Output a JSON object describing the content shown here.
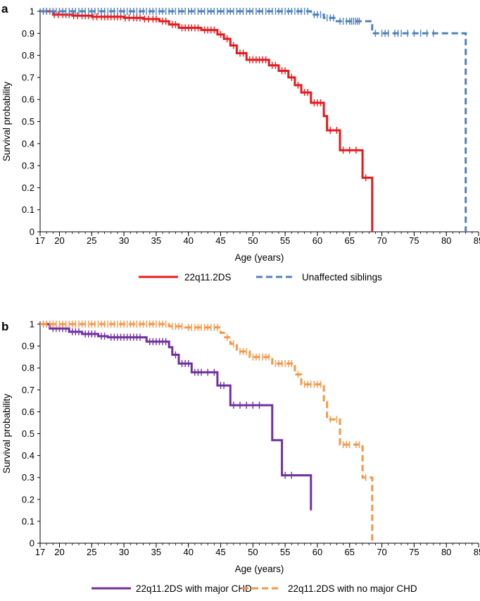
{
  "chart_data": [
    {
      "panel": "a",
      "type": "line",
      "subtype": "kaplan-meier",
      "xlabel": "Age (years)",
      "ylabel": "Survival probability",
      "xlim": [
        17,
        85
      ],
      "ylim": [
        0,
        1
      ],
      "x_ticks": [
        17,
        20,
        25,
        30,
        35,
        40,
        45,
        50,
        55,
        60,
        65,
        70,
        75,
        80,
        85
      ],
      "y_ticks": [
        0,
        0.1,
        0.2,
        0.3,
        0.4,
        0.5,
        0.6,
        0.7,
        0.8,
        0.9,
        1
      ],
      "y_tick_labels": [
        "0",
        "0.1",
        "0.2",
        "0.3",
        "0.4",
        "0.5",
        "0.6",
        "0.7",
        "0.8",
        "0.9",
        "1"
      ],
      "series": [
        {
          "name": "22q11.2DS",
          "color": "#e8191c",
          "dash": "solid",
          "steps": [
            [
              17,
              1.0
            ],
            [
              19,
              0.985
            ],
            [
              22,
              0.98
            ],
            [
              25,
              0.975
            ],
            [
              30,
              0.97
            ],
            [
              33,
              0.965
            ],
            [
              35.5,
              0.955
            ],
            [
              37,
              0.94
            ],
            [
              38.5,
              0.925
            ],
            [
              42,
              0.915
            ],
            [
              44.5,
              0.895
            ],
            [
              45.5,
              0.875
            ],
            [
              46.5,
              0.845
            ],
            [
              47.5,
              0.81
            ],
            [
              49,
              0.78
            ],
            [
              52.5,
              0.755
            ],
            [
              54,
              0.73
            ],
            [
              55.5,
              0.7
            ],
            [
              56.5,
              0.665
            ],
            [
              57.5,
              0.632
            ],
            [
              59,
              0.585
            ],
            [
              61,
              0.525
            ],
            [
              61.5,
              0.46
            ],
            [
              63.5,
              0.37
            ],
            [
              67,
              0.245
            ],
            [
              68.5,
              0.0
            ]
          ],
          "end": 68.5,
          "censor": [
            17.5,
            18,
            18.5,
            19.2,
            19.8,
            20.5,
            21,
            21.5,
            22.2,
            22.8,
            23.5,
            24,
            24.5,
            25.2,
            25.8,
            26.5,
            27,
            27.5,
            28,
            28.5,
            29,
            29.5,
            30.2,
            30.8,
            31.5,
            32,
            32.5,
            33.2,
            33.8,
            34.5,
            35,
            36,
            36.5,
            37.5,
            38,
            39,
            39.5,
            40,
            40.5,
            41,
            41.5,
            42.5,
            43,
            43.5,
            44,
            45,
            46,
            47,
            48,
            48.5,
            49.5,
            50,
            50.5,
            51,
            51.5,
            52,
            53,
            53.5,
            54.5,
            55,
            56,
            57,
            58,
            58.5,
            59.5,
            60,
            60.5,
            62,
            63,
            64,
            65,
            66,
            67.5
          ]
        },
        {
          "name": "Unaffected siblings",
          "color": "#4f81bd",
          "dash": "dashed",
          "steps": [
            [
              17,
              1.0
            ],
            [
              59,
              0.985
            ],
            [
              61,
              0.97
            ],
            [
              63,
              0.955
            ],
            [
              68.5,
              0.9
            ],
            [
              83,
              0.0
            ]
          ],
          "end": 83,
          "censor": [
            17.5,
            18,
            18.5,
            19,
            19.5,
            20,
            20.5,
            21,
            21.5,
            22,
            22.5,
            23,
            23.5,
            24,
            24.5,
            25,
            25.5,
            26,
            26.5,
            27,
            27.5,
            28,
            28.5,
            29,
            29.5,
            30,
            30.5,
            31,
            31.5,
            32,
            32.5,
            33,
            33.5,
            34,
            34.5,
            35,
            35.5,
            36,
            36.5,
            37,
            37.5,
            38,
            38.5,
            39,
            39.5,
            40,
            40.5,
            41,
            41.5,
            42,
            42.5,
            43,
            43.5,
            44,
            44.5,
            45,
            45.5,
            46,
            46.5,
            47,
            47.5,
            48,
            48.5,
            49,
            49.5,
            50,
            50.5,
            51,
            51.5,
            52,
            52.5,
            53,
            53.5,
            54,
            54.5,
            55,
            55.5,
            56,
            56.5,
            57,
            57.5,
            58,
            58.5,
            59.5,
            60,
            60.5,
            61.5,
            62,
            62.5,
            63.5,
            64,
            64.5,
            65,
            65.3,
            65.6,
            65.9,
            66.2,
            66.5,
            69,
            70,
            70.5,
            71,
            72,
            72.5,
            73,
            74,
            75,
            76,
            77,
            78
          ]
        }
      ],
      "legend": {
        "position": "bottom",
        "entries": [
          "22q11.2DS",
          "Unaffected siblings"
        ]
      }
    },
    {
      "panel": "b",
      "type": "line",
      "subtype": "kaplan-meier",
      "xlabel": "Age (years)",
      "ylabel": "Survival probability",
      "xlim": [
        17,
        85
      ],
      "ylim": [
        0,
        1
      ],
      "x_ticks": [
        17,
        20,
        25,
        30,
        35,
        40,
        45,
        50,
        55,
        60,
        65,
        70,
        75,
        80,
        85
      ],
      "y_ticks": [
        0,
        0.1,
        0.2,
        0.3,
        0.4,
        0.5,
        0.6,
        0.7,
        0.8,
        0.9,
        1
      ],
      "y_tick_labels": [
        "0",
        "0.1",
        "0.2",
        "0.3",
        "0.4",
        "0.5",
        "0.6",
        "0.7",
        "0.8",
        "0.9",
        "1"
      ],
      "series": [
        {
          "name": "22q11.2DS with major CHD",
          "color": "#7030a0",
          "dash": "solid",
          "steps": [
            [
              17,
              1.0
            ],
            [
              18.5,
              0.98
            ],
            [
              21.5,
              0.965
            ],
            [
              23.5,
              0.955
            ],
            [
              26,
              0.945
            ],
            [
              27.5,
              0.94
            ],
            [
              33.5,
              0.92
            ],
            [
              37,
              0.895
            ],
            [
              37.5,
              0.86
            ],
            [
              38.5,
              0.82
            ],
            [
              40.5,
              0.78
            ],
            [
              44.5,
              0.72
            ],
            [
              46.5,
              0.63
            ],
            [
              53,
              0.47
            ],
            [
              54.5,
              0.31
            ],
            [
              59,
              0.15
            ]
          ],
          "end": 59,
          "censor": [
            17.5,
            18,
            19,
            19.5,
            20,
            20.5,
            21,
            22,
            22.5,
            23,
            24,
            24.5,
            25,
            25.5,
            26.5,
            27,
            28,
            28.5,
            29,
            29.5,
            30,
            30.5,
            31,
            31.5,
            32,
            32.5,
            34,
            34.5,
            35,
            35.5,
            36,
            36.5,
            38,
            39,
            39.5,
            40,
            41,
            41.5,
            42,
            43,
            44,
            45,
            45.5,
            47,
            48,
            49,
            50,
            51,
            55,
            56
          ]
        },
        {
          "name": "22q11.2DS with no major CHD",
          "color": "#f79646",
          "dash": "dashed",
          "steps": [
            [
              17,
              1.0
            ],
            [
              37,
              0.99
            ],
            [
              39.5,
              0.985
            ],
            [
              45,
              0.96
            ],
            [
              45.5,
              0.94
            ],
            [
              46.5,
              0.91
            ],
            [
              47.5,
              0.875
            ],
            [
              49.5,
              0.85
            ],
            [
              53,
              0.82
            ],
            [
              56.5,
              0.77
            ],
            [
              57.5,
              0.725
            ],
            [
              61,
              0.645
            ],
            [
              61.5,
              0.565
            ],
            [
              63.5,
              0.45
            ],
            [
              67,
              0.3
            ],
            [
              68.5,
              0.0
            ]
          ],
          "end": 68.5,
          "censor": [
            17.5,
            18,
            18.5,
            19,
            19.5,
            20,
            20.5,
            21,
            21.5,
            22,
            22.5,
            23,
            23.5,
            24,
            24.5,
            25,
            25.5,
            26,
            26.5,
            27,
            27.5,
            28,
            28.5,
            29,
            29.5,
            30,
            30.5,
            31,
            31.5,
            32,
            32.5,
            33,
            33.5,
            34,
            34.5,
            35,
            35.5,
            36,
            36.5,
            37.5,
            38,
            38.5,
            39,
            40,
            40.5,
            41,
            41.5,
            42,
            42.5,
            43,
            43.5,
            44,
            44.5,
            46,
            47,
            48,
            48.5,
            49,
            50,
            50.5,
            51,
            51.5,
            52,
            52.5,
            53.5,
            54,
            54.5,
            55,
            55.5,
            56,
            57,
            58,
            58.5,
            59,
            59.5,
            60,
            60.5,
            62,
            63,
            64,
            64.5,
            65,
            66,
            66.5,
            67.5
          ]
        }
      ],
      "legend": {
        "position": "bottom",
        "entries": [
          "22q11.2DS with major CHD",
          "22q11.2DS with no major CHD"
        ]
      }
    }
  ]
}
